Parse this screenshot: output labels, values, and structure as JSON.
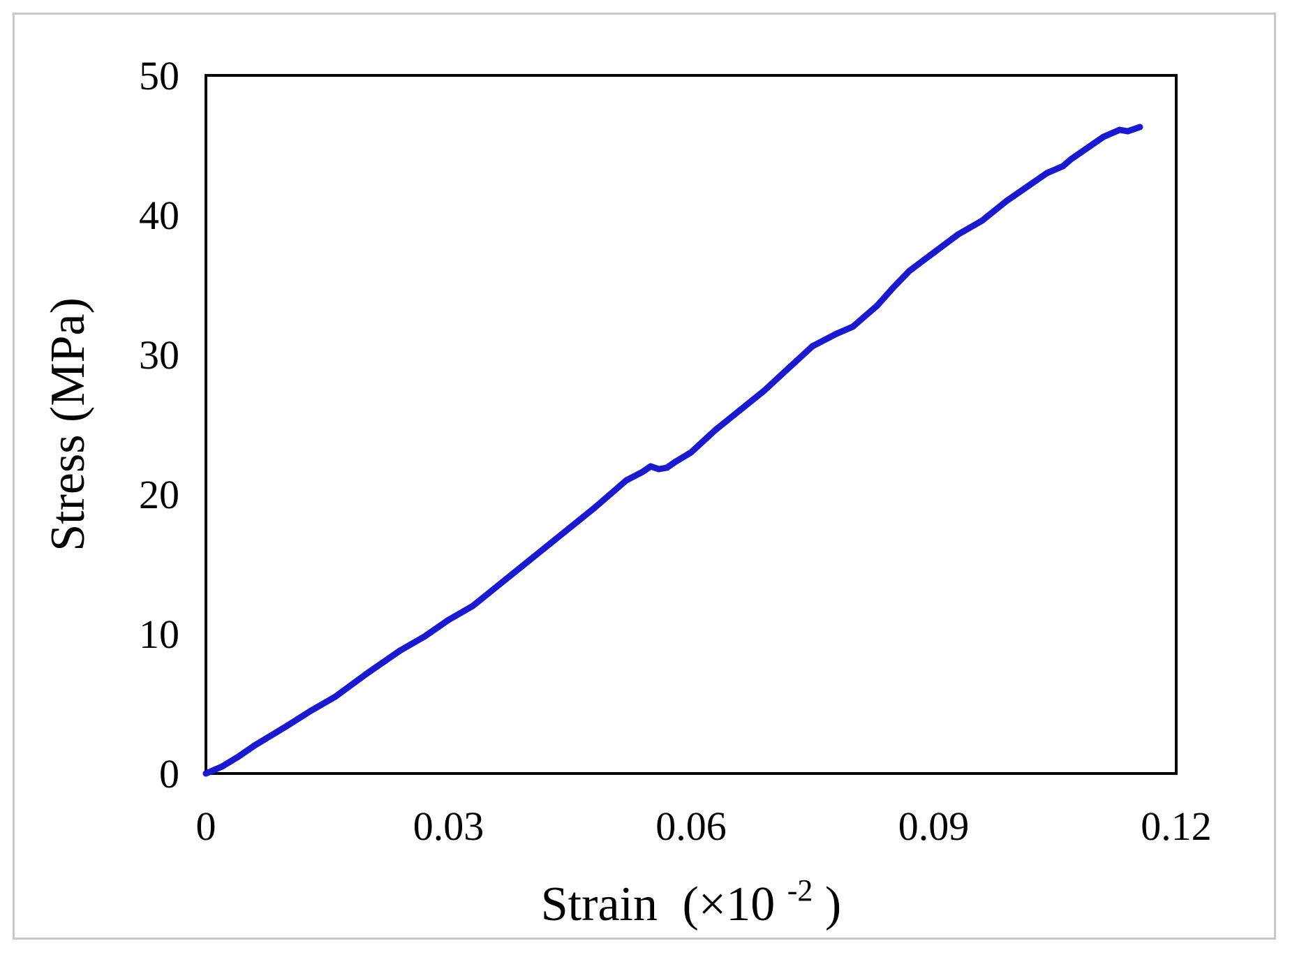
{
  "chart_data": {
    "type": "line",
    "title": "",
    "xlabel": "Strain",
    "xlabel_unit_prefix": "(×10",
    "xlabel_unit_exponent": "-2",
    "xlabel_unit_suffix": ")",
    "ylabel": "Stress (MPa)",
    "xlim": [
      0,
      0.12
    ],
    "ylim": [
      0,
      50
    ],
    "x_ticks": [
      "0",
      "0.03",
      "0.06",
      "0.09",
      "0.12"
    ],
    "y_ticks": [
      "0",
      "10",
      "20",
      "30",
      "40",
      "50"
    ],
    "grid": false,
    "legend": "none",
    "series": [
      {
        "color": "#1a1acc",
        "x": [
          0,
          0.002,
          0.004,
          0.006,
          0.008,
          0.01,
          0.013,
          0.016,
          0.02,
          0.024,
          0.027,
          0.03,
          0.033,
          0.036,
          0.039,
          0.042,
          0.045,
          0.048,
          0.05,
          0.052,
          0.054,
          0.055,
          0.056,
          0.057,
          0.058,
          0.06,
          0.063,
          0.066,
          0.069,
          0.072,
          0.075,
          0.078,
          0.08,
          0.083,
          0.085,
          0.087,
          0.09,
          0.093,
          0.096,
          0.099,
          0.102,
          0.104,
          0.106,
          0.107,
          0.109,
          0.111,
          0.113,
          0.114,
          0.1155
        ],
        "y": [
          0,
          0.5,
          1.2,
          2.0,
          2.7,
          3.4,
          4.5,
          5.5,
          7.2,
          8.8,
          9.8,
          11.0,
          12.0,
          13.4,
          14.8,
          16.2,
          17.6,
          19.0,
          20.0,
          21.0,
          21.6,
          22.0,
          21.8,
          21.9,
          22.3,
          23.0,
          24.6,
          26.0,
          27.4,
          29.0,
          30.6,
          31.5,
          32.0,
          33.5,
          34.8,
          36.0,
          37.3,
          38.6,
          39.6,
          41.0,
          42.2,
          43.0,
          43.5,
          44.0,
          44.8,
          45.6,
          46.1,
          46.0,
          46.3
        ]
      }
    ]
  }
}
